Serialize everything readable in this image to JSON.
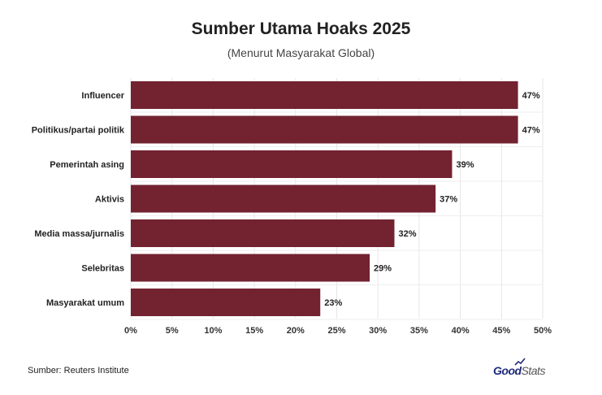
{
  "chart_data": {
    "type": "bar",
    "orientation": "horizontal",
    "title": "Sumber Utama Hoaks 2025",
    "subtitle": "(Menurut Masyarakat Global)",
    "categories": [
      "Influencer",
      "Politikus/partai politik",
      "Pemerintah asing",
      "Aktivis",
      "Media massa/jurnalis",
      "Selebritas",
      "Masyarakat umum"
    ],
    "values": [
      47,
      47,
      39,
      37,
      32,
      29,
      23
    ],
    "value_labels": [
      "47%",
      "47%",
      "39%",
      "37%",
      "32%",
      "29%",
      "23%"
    ],
    "xlim": [
      0,
      50
    ],
    "xticks": [
      0,
      5,
      10,
      15,
      20,
      25,
      30,
      35,
      40,
      45,
      50
    ],
    "xtick_labels": [
      "0%",
      "5%",
      "10%",
      "15%",
      "20%",
      "25%",
      "30%",
      "35%",
      "40%",
      "45%",
      "50%"
    ],
    "grid": true,
    "bar_color": "#732230"
  },
  "footer": {
    "source": "Sumber: Reuters Institute",
    "brand_good": "Good",
    "brand_stats": "Stats"
  }
}
